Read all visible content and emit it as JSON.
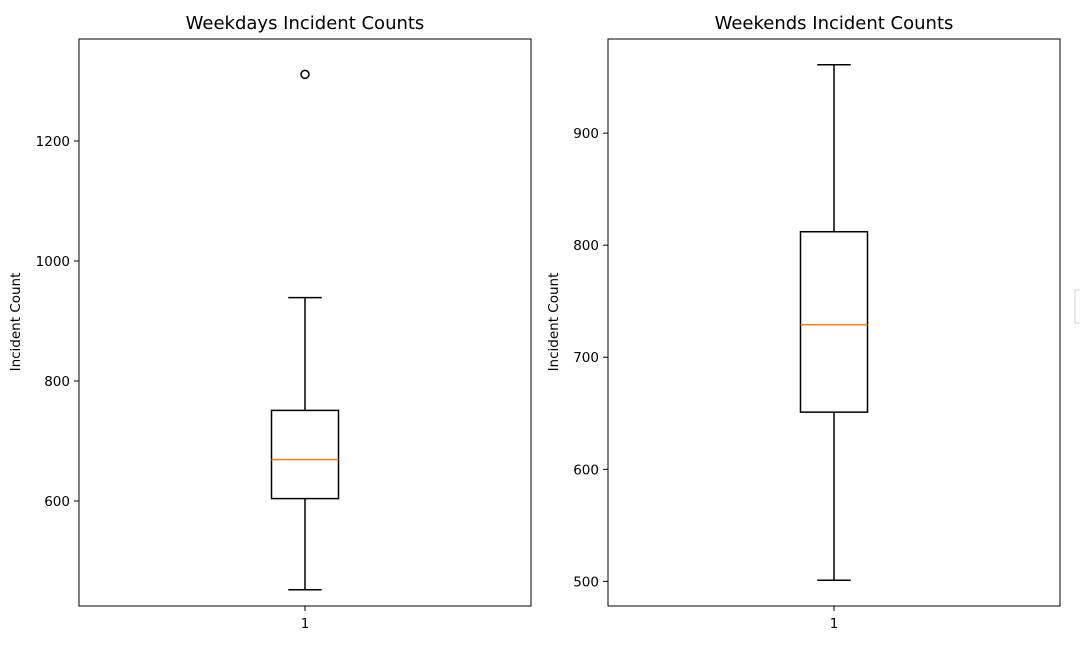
{
  "chart_data": [
    {
      "type": "box",
      "title": "Weekdays Incident Counts",
      "ylabel": "Incident Count",
      "xlabel": "",
      "categories": [
        "1"
      ],
      "ylim": [
        425,
        1370
      ],
      "yticks": [
        600,
        800,
        1000,
        1200
      ],
      "box": {
        "whisker_low": 452,
        "q1": 604,
        "median": 669,
        "q3": 751,
        "whisker_high": 939,
        "outliers": [
          1311
        ]
      },
      "grid": false,
      "colors": {
        "box": "#000000",
        "median": "#ff7f0e"
      }
    },
    {
      "type": "box",
      "title": "Weekends Incident Counts",
      "ylabel": "Incident Count",
      "xlabel": "",
      "categories": [
        "1"
      ],
      "ylim": [
        478,
        984
      ],
      "yticks": [
        500,
        600,
        700,
        800,
        900
      ],
      "box": {
        "whisker_low": 501,
        "q1": 651,
        "median": 729,
        "q3": 812,
        "whisker_high": 961,
        "outliers": []
      },
      "grid": false,
      "colors": {
        "box": "#000000",
        "median": "#ff7f0e"
      }
    }
  ]
}
